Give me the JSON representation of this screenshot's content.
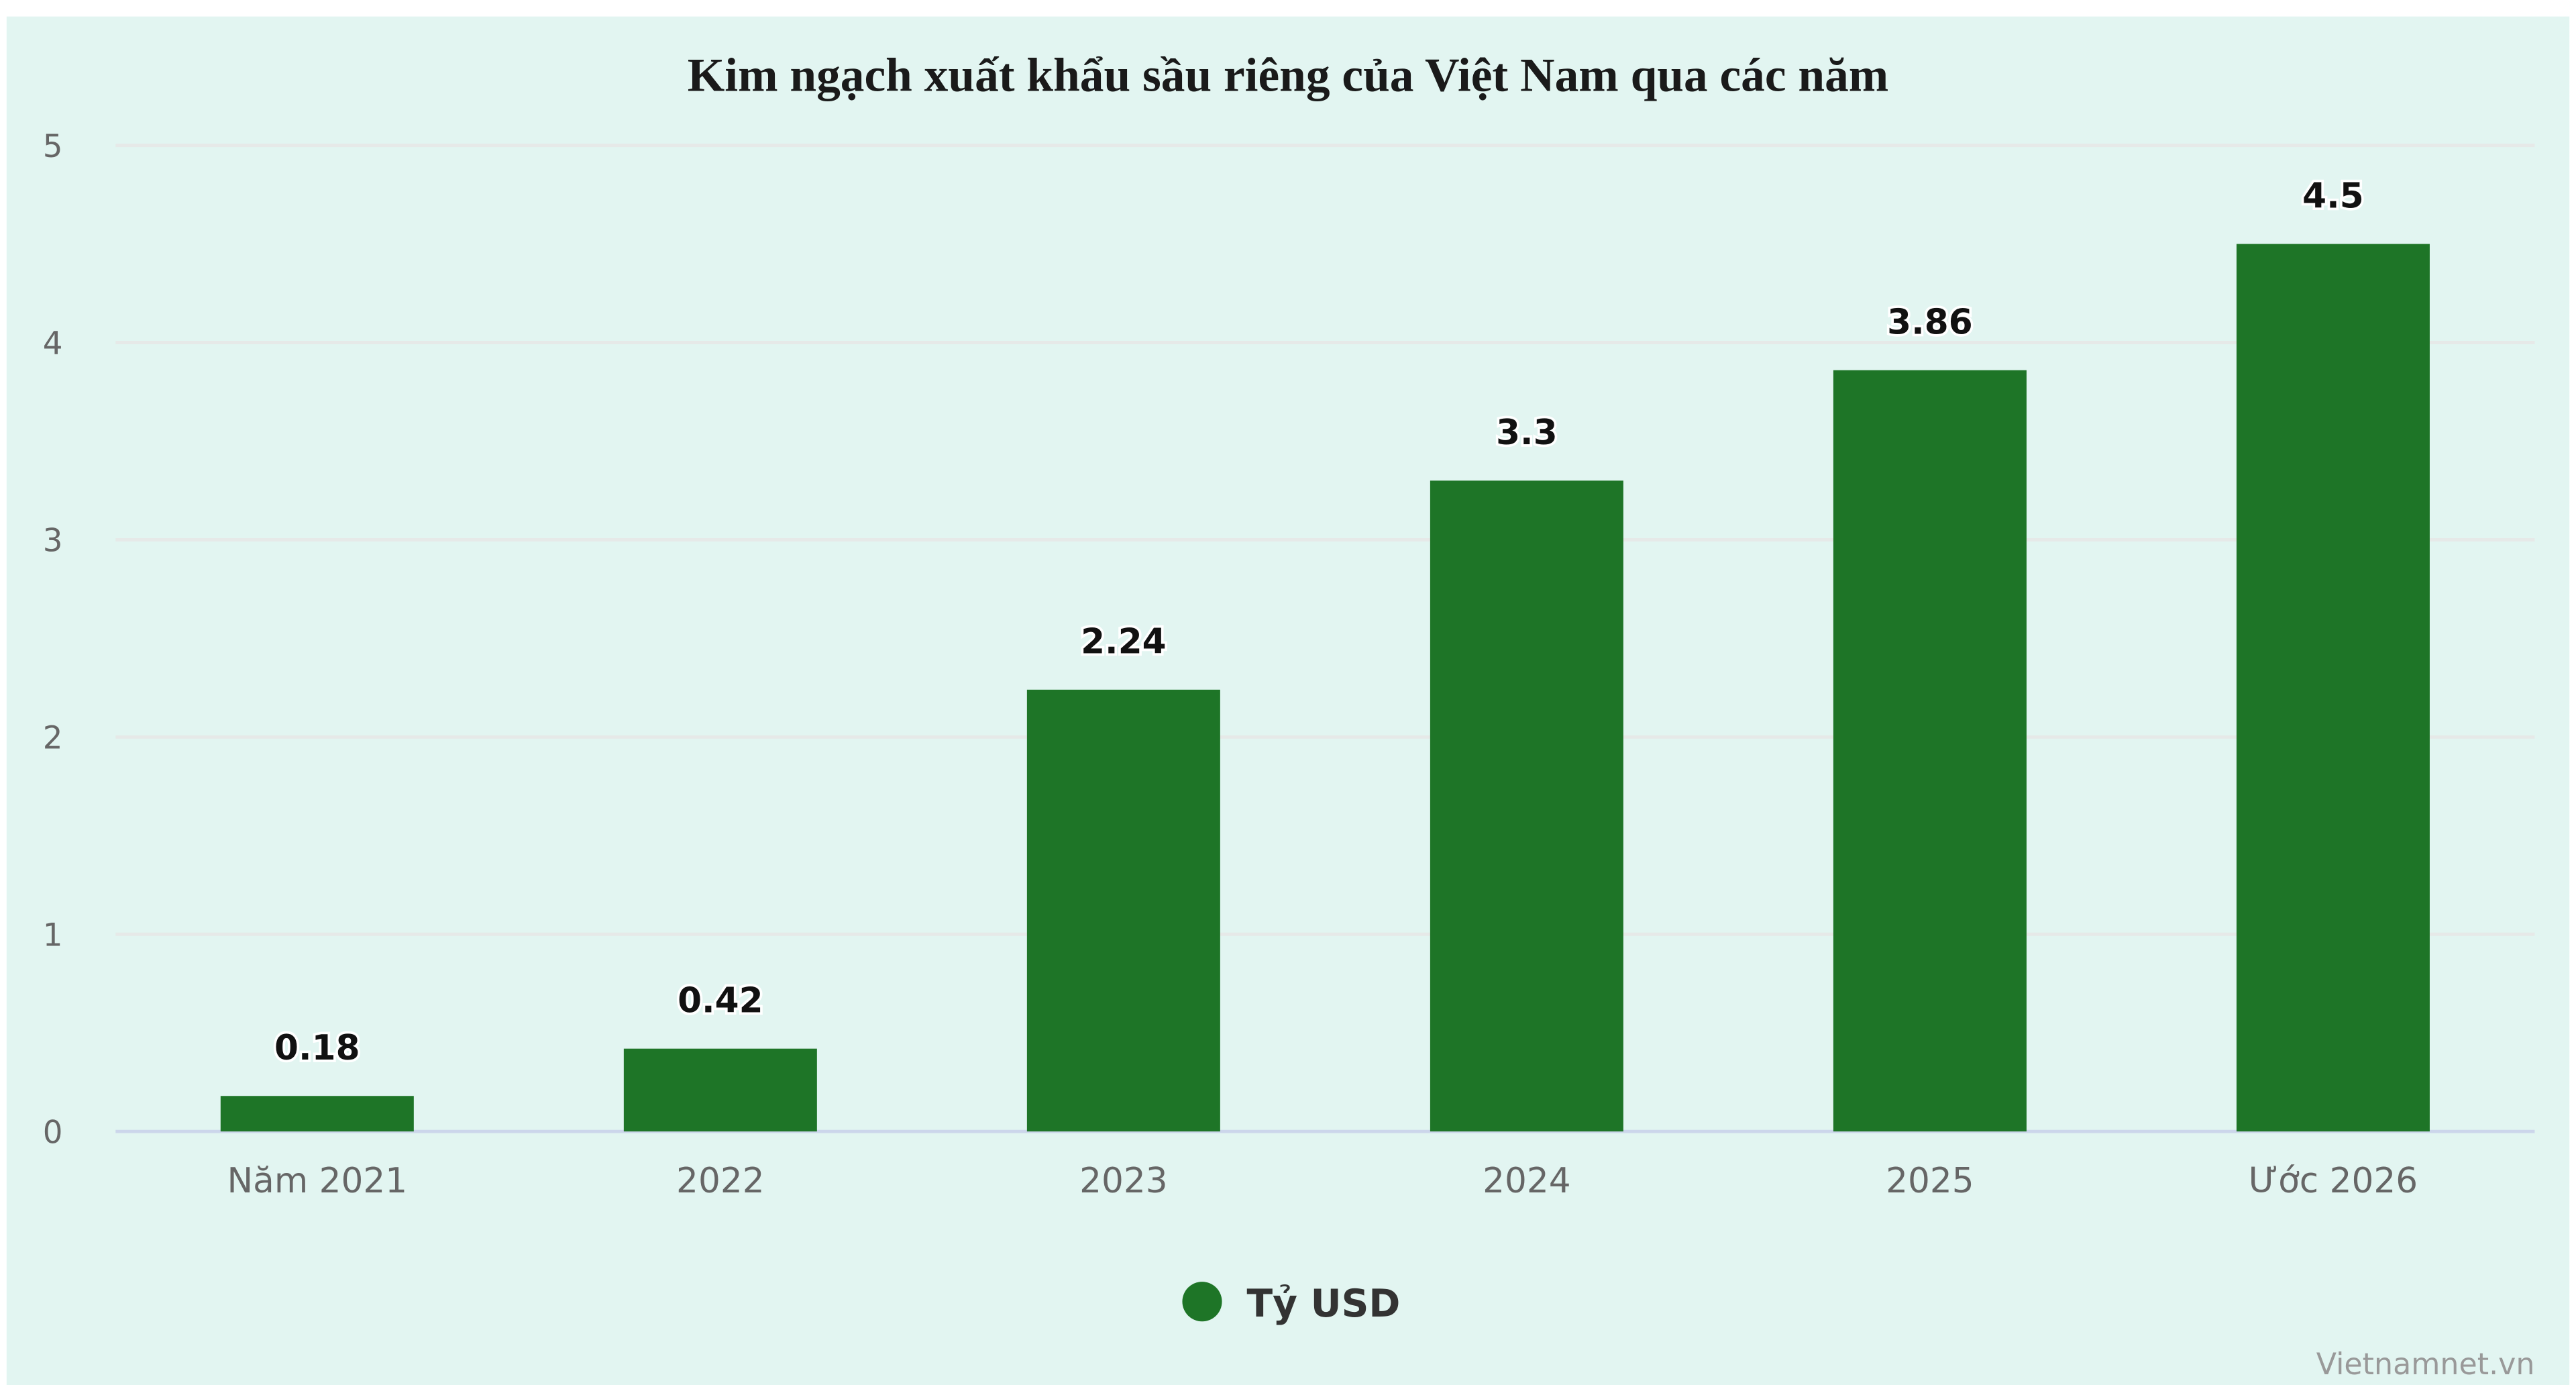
{
  "chart_data": {
    "type": "bar",
    "title": "Kim ngạch xuất khẩu sầu riêng của Việt Nam qua các năm",
    "categories": [
      "Năm 2021",
      "2022",
      "2023",
      "2024",
      "2025",
      "Ước 2026"
    ],
    "series": [
      {
        "name": "Tỷ USD",
        "values": [
          0.18,
          0.42,
          2.24,
          3.3,
          3.86,
          4.5
        ],
        "color": "#1e7527"
      }
    ],
    "data_labels": [
      "0.18",
      "0.42",
      "2.24",
      "3.3",
      "3.86",
      "4.5"
    ],
    "ylim": [
      0,
      5
    ],
    "yticks": [
      "0",
      "1",
      "2",
      "3",
      "4",
      "5"
    ],
    "xlabel": "",
    "ylabel": "",
    "grid": true,
    "legend_position": "bottom-center",
    "background_color": "#e2f5f1",
    "credit": "Vietnamnet.vn"
  }
}
